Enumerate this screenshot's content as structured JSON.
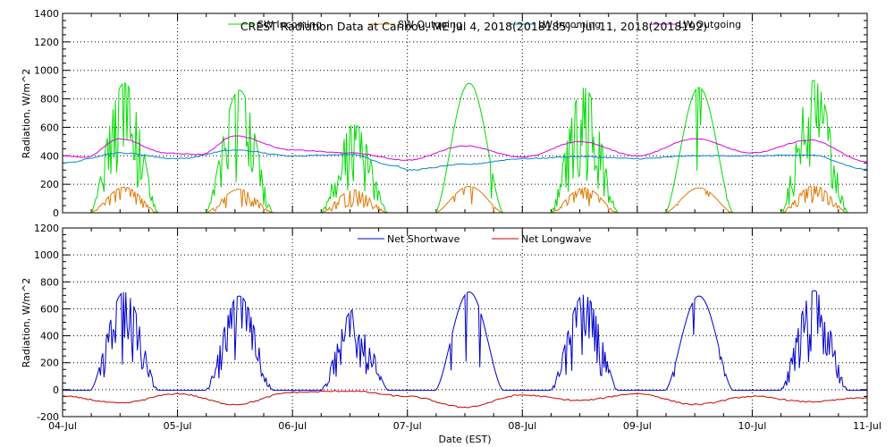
{
  "chart_data": [
    {
      "type": "line",
      "title": "CREST Radiation Data at Caribou, ME   Jul  4, 2018(2018185) - Jul 11, 2018(2018192)",
      "ylabel": "Radiation, W/m^2",
      "ylim": [
        0,
        1400
      ],
      "yticks": [
        "0",
        "200",
        "400",
        "600",
        "800",
        "1000",
        "1200",
        "1400"
      ],
      "grid": true,
      "legend_position": "top",
      "series": [
        {
          "name": "SW Incoming",
          "color": "#00dd00",
          "peaks": [
            910,
            860,
            620,
            910,
            880,
            880,
            930
          ],
          "noise": [
            0.45,
            0.45,
            0.7,
            0.03,
            0.5,
            0.08,
            0.6
          ],
          "rise": 5.8,
          "set": 20.0,
          "base": 0
        },
        {
          "name": "SW Outgoing",
          "color": "#e07800",
          "peaks": [
            180,
            165,
            160,
            185,
            175,
            175,
            190
          ],
          "noise": [
            0.4,
            0.4,
            0.6,
            0.05,
            0.4,
            0.1,
            0.5
          ],
          "rise": 5.8,
          "set": 20.0,
          "base": 0
        },
        {
          "name": "LW Incoming",
          "color": "#0088cc",
          "daily": [
            [
              0,
              350
            ],
            [
              0.5,
              420
            ],
            [
              1,
              380
            ],
            [
              1.5,
              440
            ],
            [
              2,
              400
            ],
            [
              2.5,
              410
            ],
            [
              2.9,
              330
            ],
            [
              3,
              300
            ],
            [
              3.5,
              340
            ],
            [
              4,
              380
            ],
            [
              4.5,
              395
            ],
            [
              5,
              380
            ],
            [
              5.5,
              400
            ],
            [
              6,
              400
            ],
            [
              6.5,
              405
            ],
            [
              7,
              305
            ]
          ],
          "wiggle": 8
        },
        {
          "name": "LW Outgoing",
          "color": "#e000e0",
          "daily": [
            [
              0,
              400
            ],
            [
              0.2,
              390
            ],
            [
              0.5,
              520
            ],
            [
              0.9,
              420
            ],
            [
              1.2,
              410
            ],
            [
              1.5,
              540
            ],
            [
              2,
              440
            ],
            [
              2.5,
              420
            ],
            [
              3,
              370
            ],
            [
              3.5,
              470
            ],
            [
              4,
              390
            ],
            [
              4.5,
              500
            ],
            [
              5,
              400
            ],
            [
              5.5,
              520
            ],
            [
              6,
              420
            ],
            [
              6.5,
              510
            ],
            [
              7,
              360
            ]
          ],
          "wiggle": 6
        }
      ]
    },
    {
      "type": "line",
      "xlabel": "Date (EST)",
      "ylabel": "Radiation, W/m^2",
      "ylim": [
        -200,
        1200
      ],
      "yticks": [
        "-200",
        "0",
        "200",
        "400",
        "600",
        "800",
        "1000",
        "1200"
      ],
      "grid": true,
      "legend_position": "top",
      "series": [
        {
          "name": "Net Shortwave",
          "color": "#0000cc",
          "peaks": [
            730,
            700,
            600,
            730,
            710,
            700,
            740
          ],
          "noise": [
            0.45,
            0.45,
            0.7,
            0.03,
            0.5,
            0.08,
            0.6
          ],
          "rise": 5.8,
          "set": 20.0,
          "base": -5
        },
        {
          "name": "Net Longwave",
          "color": "#cc0000",
          "daily": [
            [
              0,
              -50
            ],
            [
              0.5,
              -100
            ],
            [
              1,
              -30
            ],
            [
              1.5,
              -110
            ],
            [
              2,
              -20
            ],
            [
              2.5,
              -10
            ],
            [
              3,
              -50
            ],
            [
              3.5,
              -130
            ],
            [
              4,
              -40
            ],
            [
              4.5,
              -80
            ],
            [
              5,
              -30
            ],
            [
              5.5,
              -110
            ],
            [
              6,
              -50
            ],
            [
              6.5,
              -90
            ],
            [
              7,
              -60
            ]
          ],
          "wiggle": 10
        }
      ]
    }
  ],
  "x_axis": {
    "tick_labels": [
      "04-Jul",
      "05-Jul",
      "06-Jul",
      "07-Jul",
      "08-Jul",
      "09-Jul",
      "10-Jul",
      "11-Jul"
    ],
    "xlabel": "Date (EST)"
  }
}
